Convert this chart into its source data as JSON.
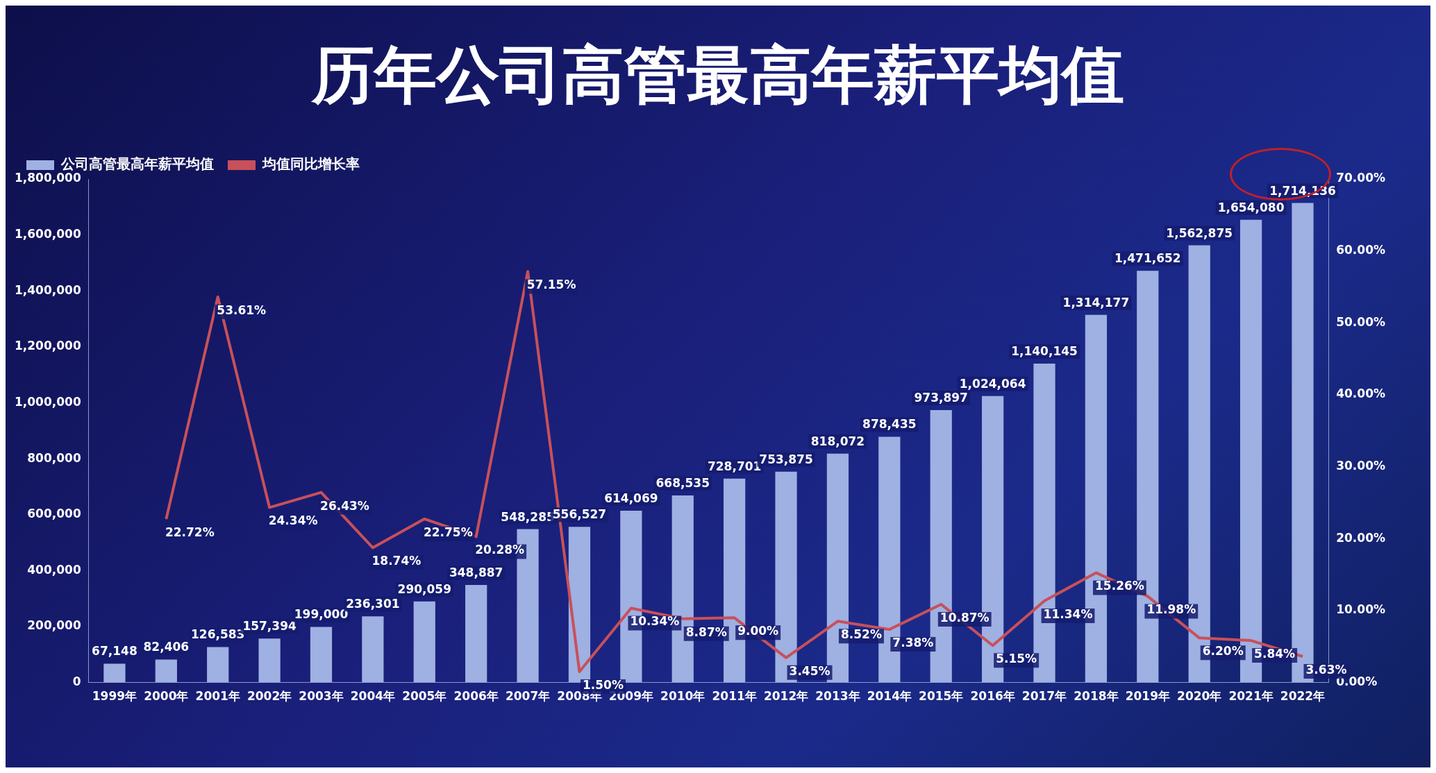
{
  "chart_data": {
    "type": "bar",
    "title": "历年公司高管最高年薪平均值",
    "categories": [
      "1999年",
      "2000年",
      "2001年",
      "2002年",
      "2003年",
      "2004年",
      "2005年",
      "2006年",
      "2007年",
      "2008年",
      "2009年",
      "2010年",
      "2011年",
      "2012年",
      "2013年",
      "2014年",
      "2015年",
      "2016年",
      "2017年",
      "2018年",
      "2019年",
      "2020年",
      "2021年",
      "2022年"
    ],
    "series": [
      {
        "name": "公司高管最高年薪平均值",
        "color": "#9fb0e2",
        "values": [
          67148,
          82406,
          126583,
          157394,
          199000,
          236301,
          290059,
          348887,
          548285,
          556527,
          614069,
          668535,
          728701,
          753875,
          818072,
          878435,
          973897,
          1024064,
          1140145,
          1314177,
          1471652,
          1562875,
          1654080,
          1714136
        ],
        "value_labels": [
          "67,148",
          "82,406",
          "126,583",
          "157,394",
          "199,000",
          "236,301",
          "290,059",
          "348,887",
          "548,285",
          "556,527",
          "614,069",
          "668,535",
          "728,701",
          "753,875",
          "818,072",
          "878,435",
          "973,897",
          "1,024,064",
          "1,140,145",
          "1,314,177",
          "1,471,652",
          "1,562,875",
          "1,654,080",
          "1,714,136"
        ]
      },
      {
        "name": "均值同比增长率",
        "type": "line",
        "axis": "y2",
        "color": "#c8505a",
        "values": [
          null,
          22.72,
          53.61,
          24.34,
          26.43,
          18.74,
          22.75,
          20.28,
          57.15,
          1.5,
          10.34,
          8.87,
          9.0,
          3.45,
          8.52,
          7.38,
          10.87,
          5.15,
          11.34,
          15.26,
          11.98,
          6.2,
          5.84,
          3.63
        ],
        "value_labels": [
          null,
          "22.72%",
          "53.61%",
          "24.34%",
          "26.43%",
          "18.74%",
          "22.75%",
          "20.28%",
          "57.15%",
          "1.50%",
          "10.34%",
          "8.87%",
          "9.00%",
          "3.45%",
          "8.52%",
          "7.38%",
          "10.87%",
          "5.15%",
          "11.34%",
          "15.26%",
          "11.98%",
          "6.20%",
          "5.84%",
          "3.63%"
        ]
      }
    ],
    "ylim": [
      0,
      1800000
    ],
    "yticks": [
      0,
      {
        "value": 200000,
        "label": "200,000"
      },
      {
        "value": 400000,
        "label": "400,000"
      },
      {
        "value": 600000,
        "label": "600,000"
      },
      {
        "value": 800000,
        "label": "800,000"
      },
      {
        "value": 1000000,
        "label": "1,000,000"
      },
      {
        "value": 1200000,
        "label": "1,200,000"
      },
      {
        "value": 1400000,
        "label": "1,400,000"
      },
      {
        "value": 1600000,
        "label": "1,600,000"
      },
      {
        "value": 1800000,
        "label": "1,800,000"
      }
    ],
    "y2lim": [
      0,
      70
    ],
    "y2ticks": [
      {
        "value": 0,
        "label": "0.00%"
      },
      {
        "value": 10,
        "label": "10.00%"
      },
      {
        "value": 20,
        "label": "20.00%"
      },
      {
        "value": 30,
        "label": "30.00%"
      },
      {
        "value": 40,
        "label": "40.00%"
      },
      {
        "value": 50,
        "label": "50.00%"
      },
      {
        "value": 60,
        "label": "60.00%"
      },
      {
        "value": 70,
        "label": "70.00%"
      }
    ],
    "legend": "top left",
    "grid": false,
    "marker": "none",
    "line_style": "solid"
  }
}
